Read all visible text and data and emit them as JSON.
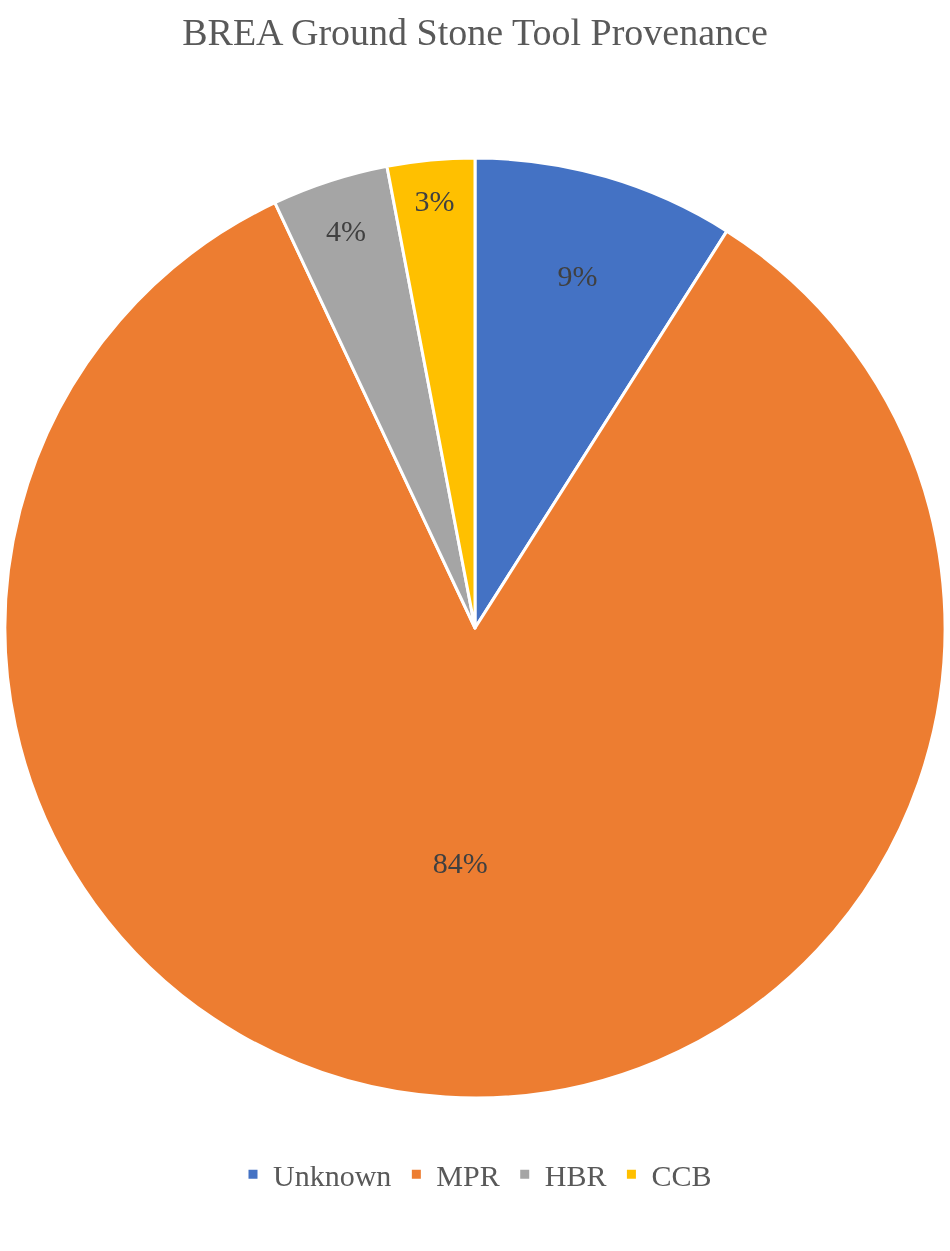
{
  "chart_data": {
    "type": "pie",
    "title": "BREA Ground Stone Tool Provenance",
    "categories": [
      "Unknown",
      "MPR",
      "HBR",
      "CCB"
    ],
    "values": [
      9,
      84,
      4,
      3
    ],
    "value_labels": [
      "9%",
      "84%",
      "4%",
      "3%"
    ],
    "colors": [
      "#4472c4",
      "#ed7d31",
      "#a5a5a5",
      "#ffc000"
    ],
    "legend": "bottom"
  }
}
